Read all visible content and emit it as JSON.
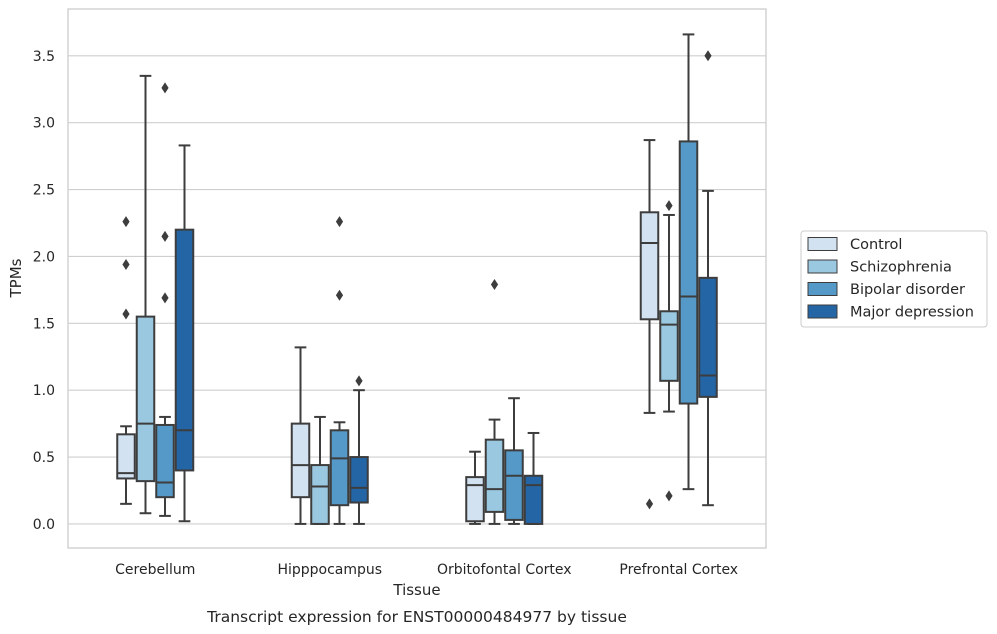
{
  "caption": "Transcript expression for ENST00000484977 by tissue",
  "chart_data": {
    "type": "boxplot",
    "xlabel": "Tissue",
    "ylabel": "TPMs",
    "ylim": [
      -0.18,
      3.85
    ],
    "yticks": [
      "0.0",
      "0.5",
      "1.0",
      "1.5",
      "2.0",
      "2.5",
      "3.0",
      "3.5"
    ],
    "grid": "horizontal",
    "legend_position": "right",
    "categories": [
      "Cerebellum",
      "Hipppocampus",
      "Orbitofontal Cortex",
      "Prefrontal Cortex"
    ],
    "series": [
      {
        "name": "Control",
        "color": "#d2e2f1",
        "boxes": [
          {
            "min": 0.15,
            "q1": 0.34,
            "median": 0.38,
            "q3": 0.67,
            "max": 0.73,
            "outliers": [
              1.57,
              1.94,
              2.26
            ]
          },
          {
            "min": 0.0,
            "q1": 0.2,
            "median": 0.44,
            "q3": 0.75,
            "max": 1.32,
            "outliers": []
          },
          {
            "min": 0.0,
            "q1": 0.02,
            "median": 0.29,
            "q3": 0.35,
            "max": 0.54,
            "outliers": []
          },
          {
            "min": 0.83,
            "q1": 1.53,
            "median": 2.1,
            "q3": 2.33,
            "max": 2.87,
            "outliers": [
              0.15
            ]
          }
        ]
      },
      {
        "name": "Schizophrenia",
        "color": "#9ac8e0",
        "boxes": [
          {
            "min": 0.08,
            "q1": 0.32,
            "median": 0.75,
            "q3": 1.55,
            "max": 3.35,
            "outliers": []
          },
          {
            "min": 0.0,
            "q1": 0.0,
            "median": 0.28,
            "q3": 0.44,
            "max": 0.8,
            "outliers": []
          },
          {
            "min": 0.0,
            "q1": 0.09,
            "median": 0.26,
            "q3": 0.63,
            "max": 0.78,
            "outliers": [
              1.79
            ]
          },
          {
            "min": 0.84,
            "q1": 1.07,
            "median": 1.49,
            "q3": 1.59,
            "max": 2.31,
            "outliers": [
              0.21,
              2.38
            ]
          }
        ]
      },
      {
        "name": "Bipolar disorder",
        "color": "#5599c8",
        "boxes": [
          {
            "min": 0.06,
            "q1": 0.2,
            "median": 0.31,
            "q3": 0.74,
            "max": 0.8,
            "outliers": [
              1.69,
              2.15,
              3.26
            ]
          },
          {
            "min": 0.0,
            "q1": 0.14,
            "median": 0.49,
            "q3": 0.7,
            "max": 0.76,
            "outliers": [
              1.71,
              2.26
            ]
          },
          {
            "min": 0.0,
            "q1": 0.03,
            "median": 0.36,
            "q3": 0.55,
            "max": 0.94,
            "outliers": []
          },
          {
            "min": 0.26,
            "q1": 0.9,
            "median": 1.7,
            "q3": 2.86,
            "max": 3.66,
            "outliers": []
          }
        ]
      },
      {
        "name": "Major depression",
        "color": "#2465a5",
        "boxes": [
          {
            "min": 0.02,
            "q1": 0.4,
            "median": 0.7,
            "q3": 2.2,
            "max": 2.83,
            "outliers": []
          },
          {
            "min": 0.0,
            "q1": 0.16,
            "median": 0.27,
            "q3": 0.5,
            "max": 1.0,
            "outliers": [
              1.07
            ]
          },
          {
            "min": 0.0,
            "q1": 0.0,
            "median": 0.29,
            "q3": 0.36,
            "max": 0.68,
            "outliers": []
          },
          {
            "min": 0.14,
            "q1": 0.95,
            "median": 1.11,
            "q3": 1.84,
            "max": 2.49,
            "outliers": [
              3.5
            ]
          }
        ]
      }
    ]
  }
}
